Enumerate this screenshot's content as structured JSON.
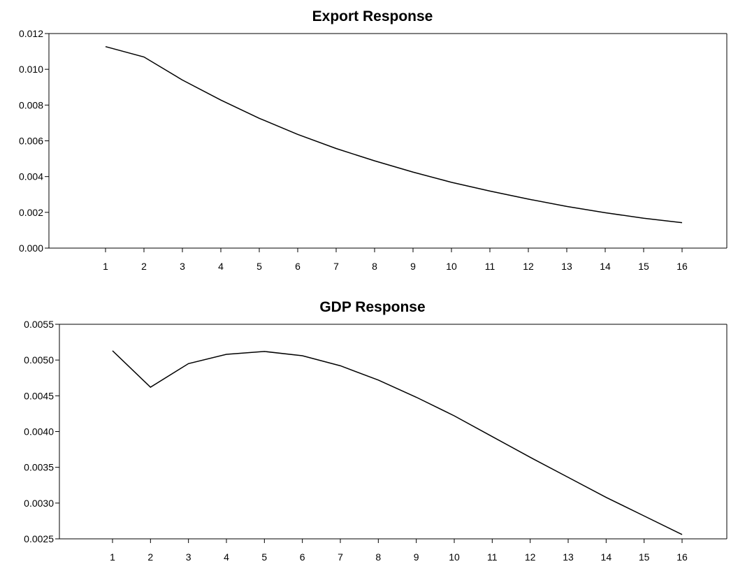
{
  "chart_data": [
    {
      "type": "line",
      "title": "Export Response",
      "xlabel": "",
      "ylabel": "",
      "categories": [
        "1",
        "2",
        "3",
        "4",
        "5",
        "6",
        "7",
        "8",
        "9",
        "10",
        "11",
        "12",
        "13",
        "14",
        "15",
        "16"
      ],
      "x": [
        1,
        2,
        3,
        4,
        5,
        6,
        7,
        8,
        9,
        10,
        11,
        12,
        13,
        14,
        15,
        16
      ],
      "values": [
        0.01127,
        0.01069,
        0.0094,
        0.00828,
        0.00726,
        0.00636,
        0.00557,
        0.00488,
        0.00425,
        0.00368,
        0.00319,
        0.00274,
        0.00233,
        0.00198,
        0.00167,
        0.00142
      ],
      "ylim": [
        0.0,
        0.012
      ],
      "yticks": [
        "0.000",
        "0.002",
        "0.004",
        "0.006",
        "0.008",
        "0.010",
        "0.012"
      ],
      "grid": false
    },
    {
      "type": "line",
      "title": "GDP Response",
      "xlabel": "",
      "ylabel": "",
      "categories": [
        "1",
        "2",
        "3",
        "4",
        "5",
        "6",
        "7",
        "8",
        "9",
        "10",
        "11",
        "12",
        "13",
        "14",
        "15",
        "16"
      ],
      "x": [
        1,
        2,
        3,
        4,
        5,
        6,
        7,
        8,
        9,
        10,
        11,
        12,
        13,
        14,
        15,
        16
      ],
      "values": [
        0.00513,
        0.00462,
        0.00495,
        0.00508,
        0.00512,
        0.00506,
        0.00492,
        0.00472,
        0.00448,
        0.00422,
        0.00393,
        0.00364,
        0.00336,
        0.00308,
        0.00282,
        0.00256
      ],
      "ylim": [
        0.0025,
        0.0055
      ],
      "yticks": [
        "0.0025",
        "0.0030",
        "0.0035",
        "0.0040",
        "0.0045",
        "0.0050",
        "0.0055"
      ],
      "grid": false
    }
  ]
}
